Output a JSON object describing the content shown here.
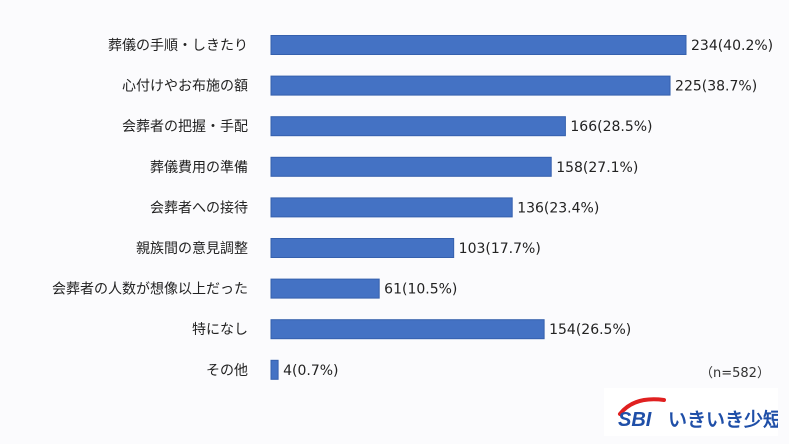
{
  "chart_data": {
    "type": "bar",
    "orientation": "horizontal",
    "categories": [
      "葬儀の手順・しきたり",
      "心付けやお布施の額",
      "会葬者の把握・手配",
      "葬儀費用の準備",
      "会葬者への接待",
      "親族間の意見調整",
      "会葬者の人数が想像以上だった",
      "特になし",
      "その他"
    ],
    "values": [
      234,
      225,
      166,
      158,
      136,
      103,
      61,
      154,
      4
    ],
    "percents": [
      "40.2%",
      "38.7%",
      "28.5%",
      "27.1%",
      "23.4%",
      "17.7%",
      "10.5%",
      "26.5%",
      "0.7%"
    ],
    "labels": [
      "234(40.2%)",
      "225(38.7%)",
      "166(28.5%)",
      "158(27.1%)",
      "136(23.4%)",
      "103(17.7%)",
      "61(10.5%)",
      "154(26.5%)",
      "4(0.7%)"
    ],
    "xlim": [
      0,
      234
    ],
    "grid": false,
    "bar_color": "#4472c4",
    "bar_border": "#3560ad"
  },
  "note": "（n=582）",
  "logo": {
    "brand": "SBI",
    "name": "いきいき少短",
    "color": "#1f4fa8",
    "swoosh": "#e02020"
  }
}
